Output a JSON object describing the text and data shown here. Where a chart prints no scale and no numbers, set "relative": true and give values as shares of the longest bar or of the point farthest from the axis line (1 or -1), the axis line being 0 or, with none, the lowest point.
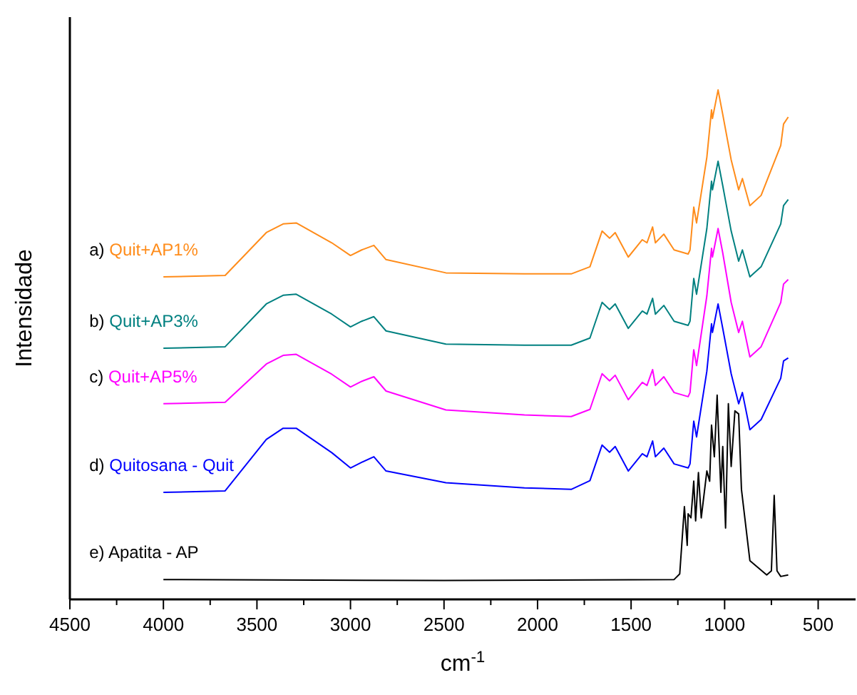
{
  "chart_data": {
    "type": "line",
    "relative": true,
    "xlabel": "cm$^{-1}$",
    "ylabel": "Intensidade",
    "xlim": [
      4500,
      300
    ],
    "xticks": [
      4500,
      {
        "value": 4250,
        "label": null
      },
      4000,
      {
        "value": 3750,
        "label": null
      },
      3500,
      {
        "value": 3250,
        "label": null
      },
      3000,
      {
        "value": 2750,
        "label": null
      },
      2500,
      {
        "value": 2250,
        "label": null
      },
      2000,
      {
        "value": 1750,
        "label": null
      },
      1500,
      {
        "value": 1250,
        "label": null
      },
      1000,
      {
        "value": 750,
        "label": null
      },
      500
    ],
    "x": [
      4000,
      3670,
      3450,
      3360,
      3290,
      3100,
      3000,
      2940,
      2875,
      2810,
      2490,
      2070,
      1820,
      1720,
      1655,
      1615,
      1585,
      1515,
      1440,
      1415,
      1385,
      1370,
      1325,
      1270,
      1195,
      1185,
      1165,
      1150,
      1095,
      1070,
      1065,
      1035,
      1010,
      965,
      925,
      905,
      865,
      805,
      700,
      685,
      660
    ],
    "legend": false,
    "marker": "none",
    "line_style": "solid",
    "grid": false,
    "series": [
      {
        "name": "a) Quit+AP1%",
        "color": "#ff8c1a",
        "values": [
          0.633,
          0.636,
          0.72,
          0.737,
          0.739,
          0.7,
          0.675,
          0.686,
          0.695,
          0.667,
          0.641,
          0.639,
          0.639,
          0.653,
          0.723,
          0.709,
          0.72,
          0.672,
          0.706,
          0.7,
          0.731,
          0.7,
          0.717,
          0.686,
          0.678,
          0.686,
          0.77,
          0.739,
          0.868,
          0.961,
          0.944,
          1.0,
          0.952,
          0.863,
          0.804,
          0.826,
          0.773,
          0.793,
          0.891,
          0.933,
          0.947
        ]
      },
      {
        "name": "b) Quit+AP3%",
        "color": "#008080",
        "values": [
          0.493,
          0.496,
          0.58,
          0.597,
          0.599,
          0.56,
          0.535,
          0.546,
          0.555,
          0.527,
          0.501,
          0.499,
          0.499,
          0.513,
          0.583,
          0.569,
          0.58,
          0.532,
          0.566,
          0.56,
          0.591,
          0.56,
          0.577,
          0.546,
          0.538,
          0.546,
          0.63,
          0.599,
          0.728,
          0.821,
          0.804,
          0.86,
          0.812,
          0.723,
          0.664,
          0.686,
          0.633,
          0.653,
          0.737,
          0.773,
          0.785
        ]
      },
      {
        "name": "c) Quit+AP5%",
        "color": "#ff00ff",
        "values": [
          0.384,
          0.387,
          0.462,
          0.479,
          0.481,
          0.442,
          0.417,
          0.428,
          0.437,
          0.409,
          0.372,
          0.362,
          0.359,
          0.373,
          0.443,
          0.429,
          0.44,
          0.392,
          0.426,
          0.42,
          0.451,
          0.42,
          0.437,
          0.406,
          0.398,
          0.406,
          0.49,
          0.459,
          0.596,
          0.689,
          0.672,
          0.728,
          0.68,
          0.583,
          0.524,
          0.546,
          0.476,
          0.496,
          0.583,
          0.619,
          0.628
        ]
      },
      {
        "name": "d) Quitosana - Quit",
        "color": "#0000ff",
        "values": [
          0.21,
          0.213,
          0.314,
          0.336,
          0.336,
          0.288,
          0.258,
          0.269,
          0.28,
          0.252,
          0.229,
          0.219,
          0.216,
          0.233,
          0.303,
          0.289,
          0.3,
          0.252,
          0.286,
          0.28,
          0.311,
          0.28,
          0.297,
          0.266,
          0.258,
          0.266,
          0.35,
          0.319,
          0.448,
          0.541,
          0.524,
          0.58,
          0.532,
          0.443,
          0.384,
          0.406,
          0.333,
          0.353,
          0.434,
          0.468,
          0.474
        ]
      },
      {
        "name": "e) Apatita - AP",
        "color": "#000000",
        "x": [
          4000,
          2500,
          1270,
          1240,
          1215,
          1200,
          1195,
          1180,
          1165,
          1155,
          1140,
          1125,
          1095,
          1080,
          1070,
          1055,
          1040,
          1020,
          1010,
          995,
          980,
          965,
          945,
          925,
          910,
          865,
          775,
          750,
          735,
          720,
          700,
          660
        ],
        "values": [
          0.039,
          0.037,
          0.039,
          0.05,
          0.182,
          0.106,
          0.168,
          0.16,
          0.232,
          0.154,
          0.249,
          0.16,
          0.252,
          0.232,
          0.342,
          0.28,
          0.401,
          0.21,
          0.3,
          0.14,
          0.384,
          0.261,
          0.37,
          0.364,
          0.216,
          0.076,
          0.048,
          0.056,
          0.204,
          0.056,
          0.045,
          0.048
        ]
      }
    ]
  }
}
